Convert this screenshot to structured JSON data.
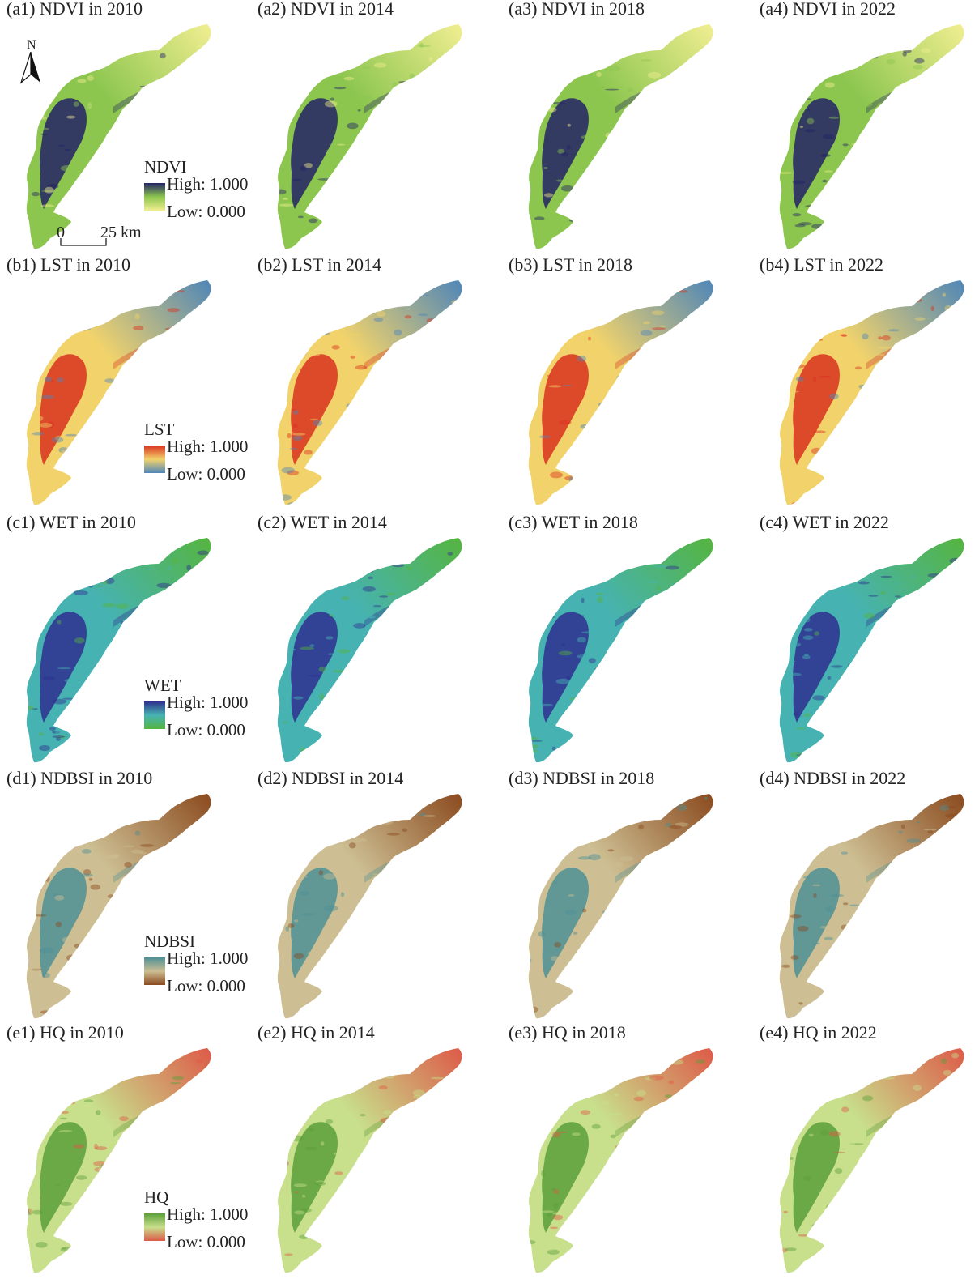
{
  "figure": {
    "rows": [
      {
        "key": "ndvi",
        "colors": {
          "low": "#f1ee91",
          "mid": "#8cc64f",
          "high": "#232265"
        },
        "panels": [
          {
            "title": "(a1) NDVI in 2010"
          },
          {
            "title": "(a2) NDVI in 2014"
          },
          {
            "title": "(a3) NDVI in 2018"
          },
          {
            "title": "(a4) NDVI in 2022"
          }
        ],
        "legend": {
          "title": "NDVI",
          "high": "High: 1.000",
          "low": "Low: 0.000"
        }
      },
      {
        "key": "lst",
        "colors": {
          "low": "#4f86b8",
          "mid": "#f2d36b",
          "high": "#d9311f"
        },
        "panels": [
          {
            "title": "(b1) LST in 2010"
          },
          {
            "title": "(b2) LST in 2014"
          },
          {
            "title": "(b3) LST in 2018"
          },
          {
            "title": "(b4) LST in 2022"
          }
        ],
        "legend": {
          "title": "LST",
          "high": "High: 1.000",
          "low": "Low: 0.000"
        }
      },
      {
        "key": "wet",
        "colors": {
          "low": "#56b43f",
          "mid": "#46b3b2",
          "high": "#2f2f8f"
        },
        "panels": [
          {
            "title": "(c1) WET in 2010"
          },
          {
            "title": "(c2) WET in 2014"
          },
          {
            "title": "(c3) WET in 2018"
          },
          {
            "title": "(c4) WET in 2022"
          }
        ],
        "legend": {
          "title": "WET",
          "high": "High: 1.000",
          "low": "Low: 0.000"
        }
      },
      {
        "key": "ndbsi",
        "colors": {
          "low": "#8a4a1e",
          "mid": "#cdbf93",
          "high": "#4d8f95"
        },
        "panels": [
          {
            "title": "(d1) NDBSI in 2010"
          },
          {
            "title": "(d2) NDBSI in 2014"
          },
          {
            "title": "(d3) NDBSI in 2018"
          },
          {
            "title": "(d4) NDBSI in 2022"
          }
        ],
        "legend": {
          "title": "NDBSI",
          "high": "High: 1.000",
          "low": "Low: 0.000"
        }
      },
      {
        "key": "hq",
        "colors": {
          "low": "#dd5a48",
          "mid": "#c8df8c",
          "high": "#5b9f3a"
        },
        "panels": [
          {
            "title": "(e1) HQ in 2010"
          },
          {
            "title": "(e2) HQ in 2014"
          },
          {
            "title": "(e3) HQ in 2018"
          },
          {
            "title": "(e4) HQ in 2022"
          }
        ],
        "legend": {
          "title": "HQ",
          "high": "High: 1.000",
          "low": "Low: 0.000"
        }
      }
    ],
    "north_arrow": {
      "label": "N"
    },
    "scale_bar": {
      "start": "0",
      "end": "25 km"
    }
  }
}
